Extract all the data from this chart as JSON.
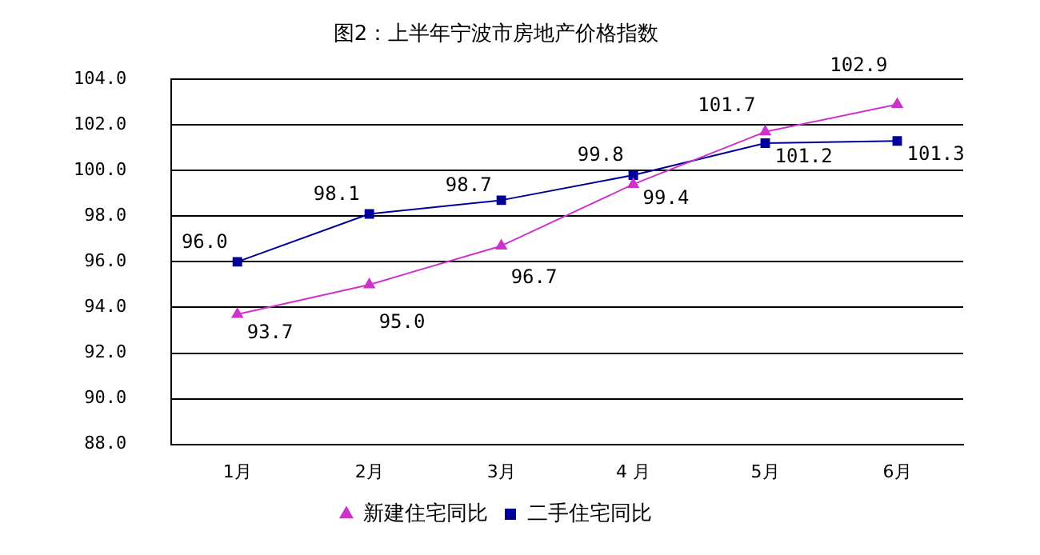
{
  "chart_data": {
    "type": "line",
    "title": "图2：上半年宁波市房地产价格指数",
    "categories": [
      "1月",
      "2月",
      "3月",
      "4 月",
      "5月",
      "6月"
    ],
    "series": [
      {
        "name": "新建住宅同比",
        "color": "#cc33cc",
        "marker": "triangle",
        "values": [
          93.7,
          95.0,
          96.7,
          99.4,
          101.7,
          102.9
        ],
        "value_labels": [
          "93.7",
          "95.0",
          "96.7",
          "99.4",
          "101.7",
          "102.9"
        ]
      },
      {
        "name": "二手住宅同比",
        "color": "#000099",
        "marker": "square",
        "values": [
          96.0,
          98.1,
          98.7,
          99.8,
          101.2,
          101.3
        ],
        "value_labels": [
          "96.0",
          "98.1",
          "98.7",
          "99.8",
          "101.2",
          "101.3"
        ]
      }
    ],
    "ylim": [
      88,
      104
    ],
    "yticks": [
      {
        "value": 88,
        "label": "88.0"
      },
      {
        "value": 90,
        "label": "90.0"
      },
      {
        "value": 92,
        "label": "92.0"
      },
      {
        "value": 94,
        "label": "94.0"
      },
      {
        "value": 96,
        "label": "96.0"
      },
      {
        "value": 98,
        "label": "98.0"
      },
      {
        "value": 100,
        "label": "100.0"
      },
      {
        "value": 102,
        "label": "102.0"
      },
      {
        "value": 104,
        "label": "104.0"
      }
    ],
    "grid": "y",
    "legend": "bottom",
    "line_style": "solid"
  }
}
